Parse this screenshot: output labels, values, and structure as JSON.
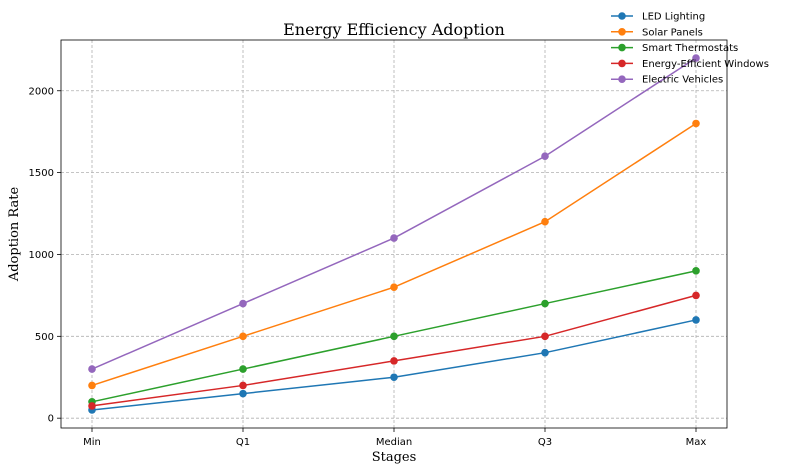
{
  "chart_data": {
    "type": "line",
    "title": "Energy Efficiency Adoption",
    "xlabel": "Stages",
    "ylabel": "Adoption Rate",
    "categories": [
      "Min",
      "Q1",
      "Median",
      "Q3",
      "Max"
    ],
    "ylim": [
      -60,
      2310
    ],
    "yticks": [
      0,
      500,
      1000,
      1500,
      2000
    ],
    "grid": true,
    "legend_position": "top-right",
    "series": [
      {
        "name": "LED Lighting",
        "color": "#1f77b4",
        "values": [
          50,
          150,
          250,
          400,
          600
        ]
      },
      {
        "name": "Solar Panels",
        "color": "#ff7f0e",
        "values": [
          200,
          500,
          800,
          1200,
          1800
        ]
      },
      {
        "name": "Smart Thermostats",
        "color": "#2ca02c",
        "values": [
          100,
          300,
          500,
          700,
          900
        ]
      },
      {
        "name": "Energy-Efficient Windows",
        "color": "#d62728",
        "values": [
          75,
          200,
          350,
          500,
          750
        ]
      },
      {
        "name": "Electric Vehicles",
        "color": "#9467bd",
        "values": [
          300,
          700,
          1100,
          1600,
          2200
        ]
      }
    ]
  }
}
